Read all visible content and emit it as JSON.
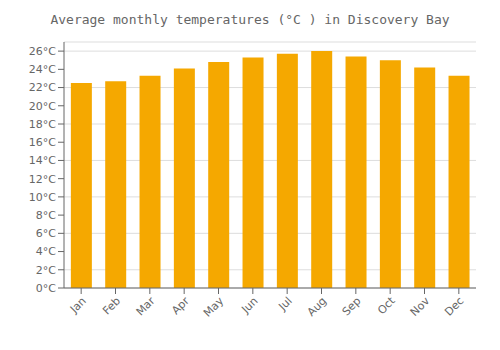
{
  "chart_data": {
    "type": "bar",
    "title": "Average monthly temperatures (°C ) in Discovery Bay",
    "categories": [
      "Jan",
      "Feb",
      "Mar",
      "Apr",
      "May",
      "Jun",
      "Jul",
      "Aug",
      "Sep",
      "Oct",
      "Nov",
      "Dec"
    ],
    "values": [
      22.5,
      22.7,
      23.3,
      24.1,
      24.8,
      25.3,
      25.7,
      26.0,
      25.4,
      25.0,
      24.2,
      23.3
    ],
    "color": "#F5A800",
    "ylim": [
      0,
      27
    ],
    "yticks": [
      {
        "value": 0,
        "label": "0°C"
      },
      {
        "value": 2,
        "label": "2°C"
      },
      {
        "value": 4,
        "label": "4°C"
      },
      {
        "value": 6,
        "label": "6°C"
      },
      {
        "value": 8,
        "label": "8°C"
      },
      {
        "value": 10,
        "label": "10°C"
      },
      {
        "value": 12,
        "label": "12°C"
      },
      {
        "value": 14,
        "label": "14°C"
      },
      {
        "value": 16,
        "label": "16°C"
      },
      {
        "value": 18,
        "label": "18°C"
      },
      {
        "value": 20,
        "label": "20°C"
      },
      {
        "value": 22,
        "label": "22°C"
      },
      {
        "value": 24,
        "label": "24°C"
      },
      {
        "value": 26,
        "label": "26°C"
      }
    ],
    "grid": true
  }
}
